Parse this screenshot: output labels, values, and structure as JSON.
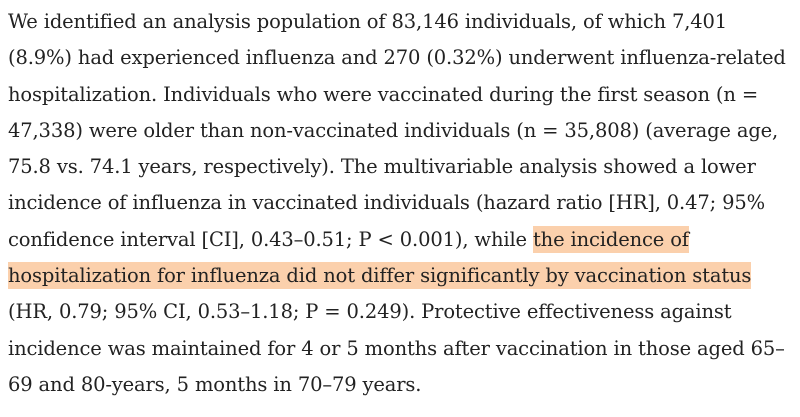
{
  "document": {
    "paragraph": {
      "text_before_highlight": "We identified an analysis population of 83,146 individuals, of which 7,401 (8.9%) had experienced influenza and 270 (0.32%) underwent influenza-related hospitalization. Individuals who were vaccinated during the first season (n = 47,338) were older than non-vaccinated individuals (n = 35,808) (average age, 75.8 vs. 74.1 years, respectively). The multivariable analysis showed a lower incidence of influenza in vaccinated individuals (hazard ratio [HR], 0.47; 95% confidence interval [CI], 0.43–0.51; P < 0.001), while ",
      "highlighted_text": "the incidence of hospitalization for influenza did not differ significantly by vaccination status",
      "text_after_highlight": " (HR, 0.79; 95% CI, 0.53–1.18; P = 0.249). Protective effectiveness against incidence was maintained for 4 or 5 months after vaccination in those aged 65–69 and 80-years, 5 months in 70–79 years."
    },
    "highlight_color": "#fbd0ac",
    "text_color": "#222222"
  }
}
